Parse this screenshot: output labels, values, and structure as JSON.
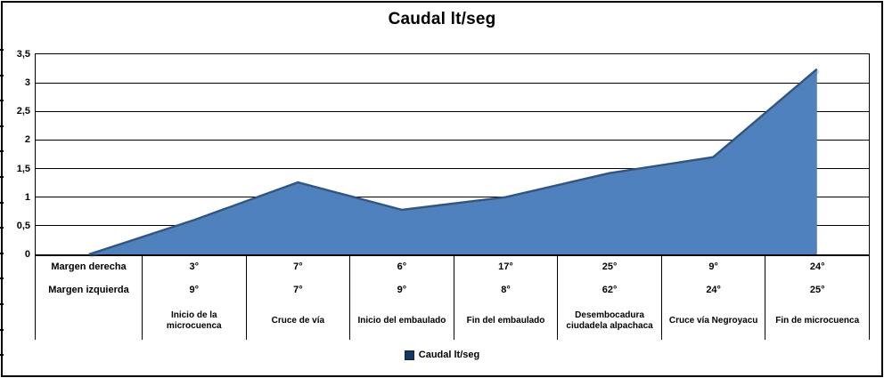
{
  "theme": {
    "background": "#FFFFFF",
    "border": "#000000",
    "grid_line": "#000000",
    "area_fill": "#4E81BD",
    "area_stroke": "#2E5586",
    "legend_marker": "#17365D",
    "legend_marker_border": "#0E2340",
    "text": "#000000"
  },
  "chart_data": {
    "type": "area",
    "title": "Caudal lt/seg",
    "legend": [
      "Caudal lt/seg"
    ],
    "legend_position": "bottom",
    "grid": true,
    "xlabel": "",
    "ylabel": "",
    "ylim": [
      0,
      3.5
    ],
    "ytick_step": 0.5,
    "ytick_labels": [
      "0",
      "0,5",
      "1",
      "1,5",
      "2",
      "2,5",
      "3",
      "3,5"
    ],
    "categories": [
      "",
      "Inicio de la microcuenca",
      "Cruce de vía",
      "Inicio del embaulado",
      "Fin del embaulado",
      "Desembocadura ciudadela alpachaca",
      "Cruce vía Negroyacu",
      "Fin de microcuenca"
    ],
    "series": [
      {
        "name": "Caudal lt/seg",
        "values": [
          0,
          0.6,
          1.26,
          0.78,
          1.0,
          1.42,
          1.7,
          3.24
        ]
      }
    ],
    "layout_note": "first series point (value 0) sits under the data-table row-label column; remaining points at the centers of the 7 category columns",
    "data_table": {
      "row_header_column": "",
      "rows": [
        {
          "label": "Margen derecha",
          "values": [
            "3°",
            "7°",
            "6°",
            "17°",
            "25°",
            "9°",
            "24°"
          ]
        },
        {
          "label": "Margen izquierda",
          "values": [
            "9°",
            "7°",
            "9°",
            "8°",
            "62°",
            "24°",
            "25°"
          ]
        }
      ],
      "category_labels": [
        "Inicio de la microcuenca",
        "Cruce de vía",
        "Inicio del embaulado",
        "Fin del embaulado",
        "Desembocadura ciudadela alpachaca",
        "Cruce vía Negroyacu",
        "Fin de microcuenca"
      ]
    }
  }
}
